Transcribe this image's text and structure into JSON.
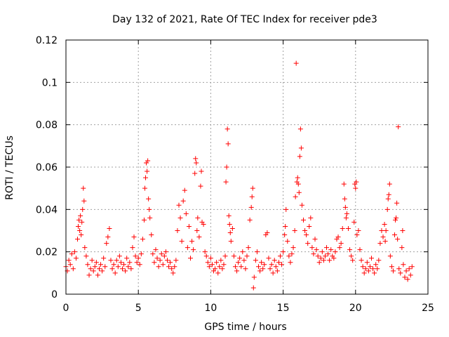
{
  "chart_data": {
    "type": "scatter",
    "title": "Day 132 of 2021, Rate Of TEC Index for receiver pde3",
    "xlabel": "GPS time / hours",
    "ylabel": "ROTI / TECUs",
    "xlim": [
      0,
      25
    ],
    "ylim": [
      0,
      0.12
    ],
    "x_ticks": [
      0,
      5,
      10,
      15,
      20,
      25
    ],
    "x_tick_labels": [
      "0",
      "5",
      "10",
      "15",
      "20",
      "25"
    ],
    "y_ticks": [
      0,
      0.02,
      0.04,
      0.06,
      0.08,
      0.1,
      0.12
    ],
    "y_tick_labels": [
      "0",
      "0.02",
      "0.04",
      "0.06",
      "0.08",
      "0.1",
      "0.12"
    ],
    "grid": true,
    "marker": "+",
    "color": "#ff0000",
    "series": [
      {
        "name": "ROTI",
        "points": [
          [
            0.0,
            0.013
          ],
          [
            0.1,
            0.011
          ],
          [
            0.2,
            0.016
          ],
          [
            0.3,
            0.014
          ],
          [
            0.4,
            0.019
          ],
          [
            0.5,
            0.012
          ],
          [
            0.6,
            0.02
          ],
          [
            0.7,
            0.017
          ],
          [
            0.8,
            0.026
          ],
          [
            0.85,
            0.032
          ],
          [
            0.9,
            0.035
          ],
          [
            0.95,
            0.03
          ],
          [
            1.0,
            0.037
          ],
          [
            1.05,
            0.028
          ],
          [
            1.1,
            0.034
          ],
          [
            1.15,
            0.04
          ],
          [
            1.2,
            0.05
          ],
          [
            1.25,
            0.044
          ],
          [
            1.3,
            0.022
          ],
          [
            1.4,
            0.018
          ],
          [
            1.5,
            0.014
          ],
          [
            1.6,
            0.009
          ],
          [
            1.7,
            0.012
          ],
          [
            1.8,
            0.016
          ],
          [
            1.9,
            0.011
          ],
          [
            2.0,
            0.013
          ],
          [
            2.1,
            0.015
          ],
          [
            2.2,
            0.009
          ],
          [
            2.3,
            0.012
          ],
          [
            2.4,
            0.014
          ],
          [
            2.5,
            0.011
          ],
          [
            2.6,
            0.017
          ],
          [
            2.7,
            0.013
          ],
          [
            2.8,
            0.024
          ],
          [
            2.9,
            0.027
          ],
          [
            3.0,
            0.031
          ],
          [
            3.1,
            0.016
          ],
          [
            3.2,
            0.012
          ],
          [
            3.3,
            0.014
          ],
          [
            3.4,
            0.01
          ],
          [
            3.5,
            0.016
          ],
          [
            3.6,
            0.013
          ],
          [
            3.7,
            0.018
          ],
          [
            3.8,
            0.015
          ],
          [
            3.9,
            0.012
          ],
          [
            4.0,
            0.014
          ],
          [
            4.1,
            0.011
          ],
          [
            4.2,
            0.017
          ],
          [
            4.3,
            0.013
          ],
          [
            4.4,
            0.015
          ],
          [
            4.5,
            0.012
          ],
          [
            4.6,
            0.022
          ],
          [
            4.7,
            0.027
          ],
          [
            4.8,
            0.018
          ],
          [
            4.9,
            0.015
          ],
          [
            5.0,
            0.017
          ],
          [
            5.1,
            0.014
          ],
          [
            5.2,
            0.019
          ],
          [
            5.3,
            0.026
          ],
          [
            5.4,
            0.035
          ],
          [
            5.45,
            0.05
          ],
          [
            5.5,
            0.055
          ],
          [
            5.55,
            0.062
          ],
          [
            5.6,
            0.058
          ],
          [
            5.65,
            0.063
          ],
          [
            5.7,
            0.045
          ],
          [
            5.75,
            0.04
          ],
          [
            5.8,
            0.036
          ],
          [
            5.9,
            0.028
          ],
          [
            6.0,
            0.019
          ],
          [
            6.1,
            0.015
          ],
          [
            6.2,
            0.021
          ],
          [
            6.3,
            0.017
          ],
          [
            6.4,
            0.013
          ],
          [
            6.5,
            0.016
          ],
          [
            6.6,
            0.019
          ],
          [
            6.7,
            0.014
          ],
          [
            6.8,
            0.018
          ],
          [
            6.9,
            0.02
          ],
          [
            7.0,
            0.016
          ],
          [
            7.1,
            0.013
          ],
          [
            7.2,
            0.015
          ],
          [
            7.3,
            0.012
          ],
          [
            7.4,
            0.01
          ],
          [
            7.5,
            0.013
          ],
          [
            7.6,
            0.016
          ],
          [
            7.7,
            0.03
          ],
          [
            7.8,
            0.042
          ],
          [
            7.9,
            0.036
          ],
          [
            8.0,
            0.025
          ],
          [
            8.1,
            0.044
          ],
          [
            8.2,
            0.049
          ],
          [
            8.3,
            0.038
          ],
          [
            8.4,
            0.022
          ],
          [
            8.5,
            0.032
          ],
          [
            8.6,
            0.017
          ],
          [
            8.7,
            0.025
          ],
          [
            8.8,
            0.021
          ],
          [
            8.9,
            0.057
          ],
          [
            8.95,
            0.064
          ],
          [
            9.0,
            0.062
          ],
          [
            9.05,
            0.03
          ],
          [
            9.1,
            0.036
          ],
          [
            9.2,
            0.027
          ],
          [
            9.3,
            0.051
          ],
          [
            9.35,
            0.058
          ],
          [
            9.4,
            0.034
          ],
          [
            9.5,
            0.033
          ],
          [
            9.6,
            0.02
          ],
          [
            9.7,
            0.018
          ],
          [
            9.8,
            0.015
          ],
          [
            9.9,
            0.013
          ],
          [
            10.0,
            0.017
          ],
          [
            10.1,
            0.014
          ],
          [
            10.2,
            0.011
          ],
          [
            10.3,
            0.012
          ],
          [
            10.4,
            0.015
          ],
          [
            10.5,
            0.01
          ],
          [
            10.6,
            0.013
          ],
          [
            10.7,
            0.016
          ],
          [
            10.8,
            0.012
          ],
          [
            10.9,
            0.014
          ],
          [
            11.0,
            0.018
          ],
          [
            11.05,
            0.053
          ],
          [
            11.1,
            0.06
          ],
          [
            11.15,
            0.078
          ],
          [
            11.2,
            0.071
          ],
          [
            11.25,
            0.037
          ],
          [
            11.3,
            0.033
          ],
          [
            11.35,
            0.029
          ],
          [
            11.4,
            0.025
          ],
          [
            11.5,
            0.031
          ],
          [
            11.6,
            0.018
          ],
          [
            11.7,
            0.013
          ],
          [
            11.8,
            0.011
          ],
          [
            11.9,
            0.015
          ],
          [
            12.0,
            0.017
          ],
          [
            12.1,
            0.013
          ],
          [
            12.2,
            0.02
          ],
          [
            12.3,
            0.016
          ],
          [
            12.4,
            0.012
          ],
          [
            12.5,
            0.018
          ],
          [
            12.6,
            0.022
          ],
          [
            12.7,
            0.035
          ],
          [
            12.8,
            0.041
          ],
          [
            12.85,
            0.046
          ],
          [
            12.9,
            0.05
          ],
          [
            12.95,
            0.003
          ],
          [
            13.0,
            0.008
          ],
          [
            13.1,
            0.016
          ],
          [
            13.2,
            0.02
          ],
          [
            13.3,
            0.013
          ],
          [
            13.4,
            0.011
          ],
          [
            13.5,
            0.015
          ],
          [
            13.6,
            0.012
          ],
          [
            13.7,
            0.014
          ],
          [
            13.8,
            0.028
          ],
          [
            13.9,
            0.029
          ],
          [
            14.0,
            0.017
          ],
          [
            14.1,
            0.012
          ],
          [
            14.2,
            0.014
          ],
          [
            14.3,
            0.01
          ],
          [
            14.4,
            0.016
          ],
          [
            14.5,
            0.013
          ],
          [
            14.6,
            0.011
          ],
          [
            14.7,
            0.015
          ],
          [
            14.8,
            0.018
          ],
          [
            14.9,
            0.014
          ],
          [
            15.0,
            0.02
          ],
          [
            15.1,
            0.028
          ],
          [
            15.15,
            0.032
          ],
          [
            15.2,
            0.04
          ],
          [
            15.3,
            0.025
          ],
          [
            15.4,
            0.018
          ],
          [
            15.5,
            0.015
          ],
          [
            15.6,
            0.019
          ],
          [
            15.7,
            0.022
          ],
          [
            15.8,
            0.03
          ],
          [
            15.85,
            0.046
          ],
          [
            15.9,
            0.109
          ],
          [
            15.95,
            0.053
          ],
          [
            16.0,
            0.055
          ],
          [
            16.05,
            0.052
          ],
          [
            16.1,
            0.048
          ],
          [
            16.15,
            0.065
          ],
          [
            16.2,
            0.078
          ],
          [
            16.25,
            0.069
          ],
          [
            16.3,
            0.042
          ],
          [
            16.4,
            0.035
          ],
          [
            16.5,
            0.03
          ],
          [
            16.6,
            0.028
          ],
          [
            16.7,
            0.024
          ],
          [
            16.8,
            0.032
          ],
          [
            16.9,
            0.036
          ],
          [
            17.0,
            0.022
          ],
          [
            17.1,
            0.019
          ],
          [
            17.2,
            0.026
          ],
          [
            17.3,
            0.021
          ],
          [
            17.4,
            0.018
          ],
          [
            17.5,
            0.015
          ],
          [
            17.6,
            0.017
          ],
          [
            17.7,
            0.02
          ],
          [
            17.8,
            0.016
          ],
          [
            17.9,
            0.018
          ],
          [
            18.0,
            0.022
          ],
          [
            18.1,
            0.019
          ],
          [
            18.2,
            0.016
          ],
          [
            18.3,
            0.021
          ],
          [
            18.4,
            0.018
          ],
          [
            18.5,
            0.017
          ],
          [
            18.6,
            0.02
          ],
          [
            18.7,
            0.026
          ],
          [
            18.8,
            0.027
          ],
          [
            18.9,
            0.022
          ],
          [
            19.0,
            0.024
          ],
          [
            19.1,
            0.031
          ],
          [
            19.2,
            0.052
          ],
          [
            19.25,
            0.045
          ],
          [
            19.3,
            0.041
          ],
          [
            19.35,
            0.036
          ],
          [
            19.4,
            0.038
          ],
          [
            19.5,
            0.031
          ],
          [
            19.6,
            0.021
          ],
          [
            19.7,
            0.018
          ],
          [
            19.8,
            0.016
          ],
          [
            19.9,
            0.034
          ],
          [
            19.95,
            0.052
          ],
          [
            20.0,
            0.05
          ],
          [
            20.05,
            0.053
          ],
          [
            20.1,
            0.028
          ],
          [
            20.2,
            0.03
          ],
          [
            20.3,
            0.021
          ],
          [
            20.4,
            0.016
          ],
          [
            20.5,
            0.013
          ],
          [
            20.6,
            0.01
          ],
          [
            20.7,
            0.012
          ],
          [
            20.8,
            0.015
          ],
          [
            20.9,
            0.011
          ],
          [
            21.0,
            0.013
          ],
          [
            21.1,
            0.017
          ],
          [
            21.2,
            0.012
          ],
          [
            21.3,
            0.01
          ],
          [
            21.4,
            0.014
          ],
          [
            21.5,
            0.012
          ],
          [
            21.6,
            0.016
          ],
          [
            21.7,
            0.024
          ],
          [
            21.8,
            0.03
          ],
          [
            21.9,
            0.027
          ],
          [
            22.0,
            0.033
          ],
          [
            22.05,
            0.025
          ],
          [
            22.1,
            0.03
          ],
          [
            22.2,
            0.04
          ],
          [
            22.25,
            0.045
          ],
          [
            22.3,
            0.047
          ],
          [
            22.35,
            0.052
          ],
          [
            22.4,
            0.018
          ],
          [
            22.5,
            0.013
          ],
          [
            22.6,
            0.011
          ],
          [
            22.7,
            0.028
          ],
          [
            22.75,
            0.035
          ],
          [
            22.8,
            0.036
          ],
          [
            22.85,
            0.043
          ],
          [
            22.9,
            0.026
          ],
          [
            22.95,
            0.079
          ],
          [
            23.0,
            0.012
          ],
          [
            23.1,
            0.01
          ],
          [
            23.2,
            0.022
          ],
          [
            23.25,
            0.03
          ],
          [
            23.3,
            0.014
          ],
          [
            23.4,
            0.008
          ],
          [
            23.5,
            0.011
          ],
          [
            23.6,
            0.007
          ],
          [
            23.7,
            0.012
          ],
          [
            23.8,
            0.009
          ],
          [
            23.9,
            0.013
          ]
        ]
      }
    ]
  }
}
